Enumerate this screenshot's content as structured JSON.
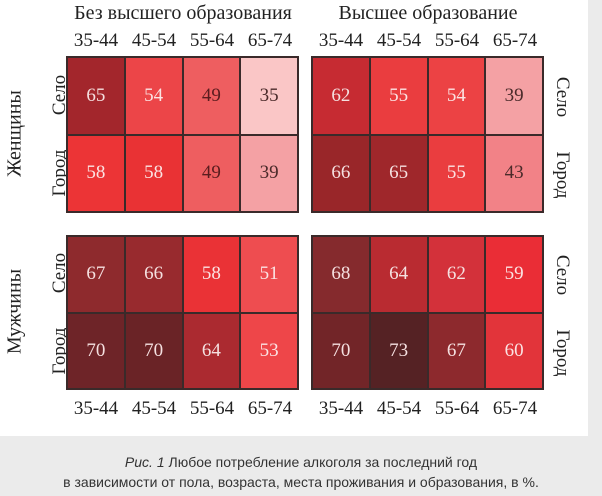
{
  "chart_data": {
    "type": "heatmap",
    "title": "Любое потребление алкоголя за последний год в зависимости от пола, возраста, места проживания и образования, в %.",
    "columns_groups": [
      "Без высшего образования",
      "Высшее образование"
    ],
    "age_groups": [
      "35-44",
      "45-54",
      "55-64",
      "65-74"
    ],
    "row_groups": [
      "Женщины",
      "Мужчины"
    ],
    "settlement": [
      "Село",
      "Город"
    ],
    "values": {
      "Женщины": {
        "Без высшего образования": {
          "Село": [
            65,
            54,
            49,
            35
          ],
          "Город": [
            58,
            58,
            49,
            39
          ]
        },
        "Высшее образование": {
          "Село": [
            62,
            55,
            54,
            39
          ],
          "Город": [
            66,
            65,
            55,
            43
          ]
        }
      },
      "Мужчины": {
        "Без высшего образования": {
          "Село": [
            67,
            66,
            58,
            51
          ],
          "Город": [
            70,
            70,
            64,
            53
          ]
        },
        "Высшее образование": {
          "Село": [
            68,
            64,
            62,
            59
          ],
          "Город": [
            70,
            73,
            67,
            60
          ]
        }
      }
    },
    "unit": "%"
  },
  "headers": {
    "no_higher_edu": "Без высшего образования",
    "higher_edu": "Высшее образование",
    "ages": [
      "35-44",
      "45-54",
      "55-64",
      "65-74"
    ]
  },
  "labels": {
    "women": "Женщины",
    "men": "Мужчины",
    "village": "Село",
    "city": "Город"
  },
  "panels": {
    "women_no_edu": [
      {
        "v": "65",
        "bg": "#a3262c",
        "fg": "#f5e0e0"
      },
      {
        "v": "54",
        "bg": "#ec4548",
        "fg": "#fbe3e3"
      },
      {
        "v": "49",
        "bg": "#ee5e60",
        "fg": "#5a1c1e"
      },
      {
        "v": "35",
        "bg": "#fac6c6",
        "fg": "#4a2a2a"
      },
      {
        "v": "58",
        "bg": "#ec3436",
        "fg": "#fbe3e3"
      },
      {
        "v": "58",
        "bg": "#e93234",
        "fg": "#fbe3e3"
      },
      {
        "v": "49",
        "bg": "#ee5e60",
        "fg": "#5a1c1e"
      },
      {
        "v": "39",
        "bg": "#f4a1a4",
        "fg": "#4a2a2a"
      }
    ],
    "women_edu": [
      {
        "v": "62",
        "bg": "#c62b32",
        "fg": "#f5e0e0"
      },
      {
        "v": "55",
        "bg": "#ea3d3f",
        "fg": "#fbe3e3"
      },
      {
        "v": "54",
        "bg": "#ec4244",
        "fg": "#fbe3e3"
      },
      {
        "v": "39",
        "bg": "#f4a1a4",
        "fg": "#4a2a2a"
      },
      {
        "v": "66",
        "bg": "#992629",
        "fg": "#f5e0e0"
      },
      {
        "v": "65",
        "bg": "#9f272b",
        "fg": "#f5e0e0"
      },
      {
        "v": "55",
        "bg": "#ea3d3f",
        "fg": "#fbe3e3"
      },
      {
        "v": "43",
        "bg": "#f28287",
        "fg": "#4a2a2a"
      }
    ],
    "men_no_edu": [
      {
        "v": "67",
        "bg": "#8e2a2d",
        "fg": "#f5e0e0"
      },
      {
        "v": "66",
        "bg": "#982a2e",
        "fg": "#f5e0e0"
      },
      {
        "v": "58",
        "bg": "#ea3236",
        "fg": "#fbe3e3"
      },
      {
        "v": "51",
        "bg": "#ee4d50",
        "fg": "#fbe3e3"
      },
      {
        "v": "70",
        "bg": "#6e2428",
        "fg": "#f5e0e0"
      },
      {
        "v": "70",
        "bg": "#6a2326",
        "fg": "#f5e0e0"
      },
      {
        "v": "64",
        "bg": "#ab2a30",
        "fg": "#f5e0e0"
      },
      {
        "v": "53",
        "bg": "#ee4649",
        "fg": "#fbe3e3"
      }
    ],
    "men_edu": [
      {
        "v": "68",
        "bg": "#852a2d",
        "fg": "#f5e0e0"
      },
      {
        "v": "64",
        "bg": "#b92b31",
        "fg": "#f5e0e0"
      },
      {
        "v": "62",
        "bg": "#d3313a",
        "fg": "#f5e0e0"
      },
      {
        "v": "59",
        "bg": "#ea2d36",
        "fg": "#fbe3e3"
      },
      {
        "v": "70",
        "bg": "#722528",
        "fg": "#f5e0e0"
      },
      {
        "v": "73",
        "bg": "#552224",
        "fg": "#f5e0e0"
      },
      {
        "v": "67",
        "bg": "#8d292d",
        "fg": "#f5e0e0"
      },
      {
        "v": "60",
        "bg": "#e2343a",
        "fg": "#fbe3e3"
      }
    ]
  },
  "caption": {
    "prefix": "Рис. 1",
    "line1": " Любое потребление алкоголя за последний год",
    "line2": "в зависимости от пола, возраста, места проживания и образования, в %."
  }
}
